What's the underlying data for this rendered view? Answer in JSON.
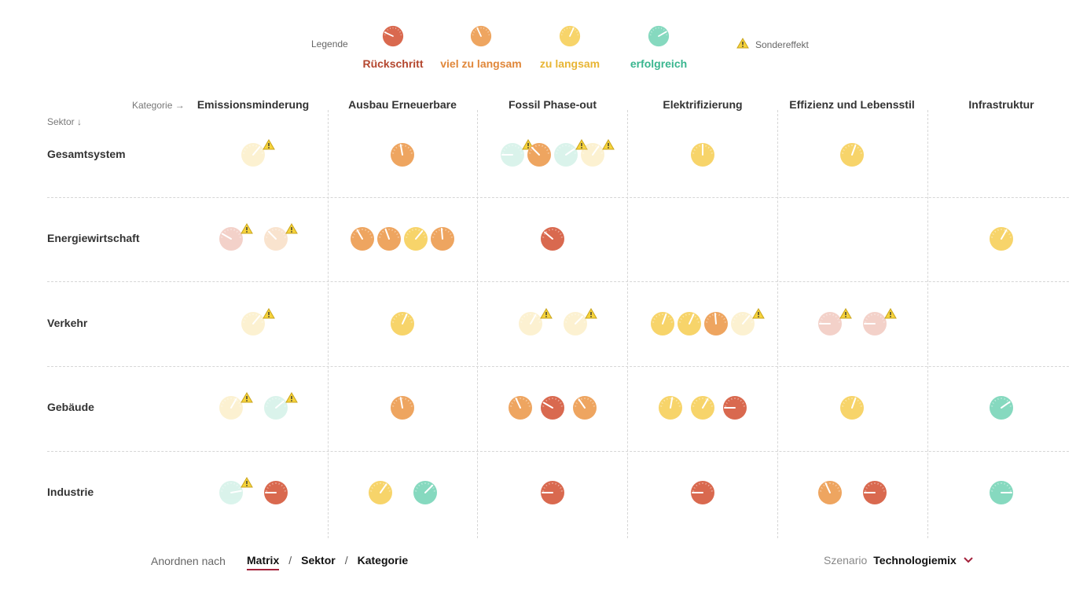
{
  "legend": {
    "title": "Legende",
    "items": [
      {
        "key": "rueck",
        "label": "Rückschritt",
        "color": "#d9694f",
        "text_color": "#b4472f",
        "angle": -65
      },
      {
        "key": "viel",
        "label": "viel zu langsam",
        "color": "#eea560",
        "text_color": "#e0873a",
        "angle": -25
      },
      {
        "key": "zu",
        "label": "zu langsam",
        "color": "#f7d46a",
        "text_color": "#e8b534",
        "angle": 25
      },
      {
        "key": "erf",
        "label": "erfolgreich",
        "color": "#86d9bf",
        "text_color": "#39b68f",
        "angle": 60
      }
    ],
    "special_label": "Sondereffekt"
  },
  "grid": {
    "category_hint": "Kategorie →",
    "sector_hint": "Sektor ↓",
    "categories": [
      "Emissionsminderung",
      "Ausbau Erneuerbare",
      "Fossil Phase-out",
      "Elektrifizierung",
      "Effizienz und Lebensstil",
      "Infrastruktur"
    ],
    "sectors": [
      "Gesamtsystem",
      "Energiewirtschaft",
      "Verkehr",
      "Gebäude",
      "Industrie"
    ],
    "cells": [
      [
        [
          {
            "s": "zu",
            "a": 40,
            "f": true,
            "w": true
          }
        ],
        [
          {
            "s": "viel",
            "a": -10
          }
        ],
        [
          {
            "s": "erf",
            "a": -90,
            "f": true,
            "w": true
          },
          {
            "s": "viel",
            "a": -45
          },
          {
            "s": "erf",
            "a": 55,
            "f": true,
            "w": true
          },
          {
            "s": "zu",
            "a": 35,
            "f": true,
            "w": true
          }
        ],
        [
          {
            "s": "zu",
            "a": 0
          }
        ],
        [
          {
            "s": "zu",
            "a": 20
          }
        ],
        []
      ],
      [
        [
          {
            "s": "rueck",
            "a": -60,
            "f": true,
            "w": true
          },
          {
            "s": "viel",
            "a": -45,
            "f": true,
            "w": true
          }
        ],
        [
          {
            "s": "viel",
            "a": -30
          },
          {
            "s": "viel",
            "a": -20
          },
          {
            "s": "zu",
            "a": 40
          },
          {
            "s": "viel",
            "a": -5
          }
        ],
        [
          {
            "s": "rueck",
            "a": -50
          }
        ],
        [],
        [],
        [
          {
            "s": "zu",
            "a": 30
          }
        ]
      ],
      [
        [
          {
            "s": "zu",
            "a": 40,
            "f": true,
            "w": true
          }
        ],
        [
          {
            "s": "zu",
            "a": 25
          }
        ],
        [
          {
            "s": "zu",
            "a": 30,
            "f": true,
            "w": true
          },
          {
            "s": "zu",
            "a": 45,
            "f": true,
            "w": true
          }
        ],
        [
          {
            "s": "zu",
            "a": 20
          },
          {
            "s": "zu",
            "a": 25
          },
          {
            "s": "viel",
            "a": -5
          },
          {
            "s": "zu",
            "a": 40,
            "f": true,
            "w": true
          }
        ],
        [
          {
            "s": "rueck",
            "a": -90,
            "f": true,
            "w": true
          },
          {
            "s": "rueck",
            "a": -90,
            "f": true,
            "w": true
          }
        ],
        []
      ],
      [
        [
          {
            "s": "zu",
            "a": 30,
            "f": true,
            "w": true
          },
          {
            "s": "erf",
            "a": 50,
            "f": true,
            "w": true
          }
        ],
        [
          {
            "s": "viel",
            "a": -10
          }
        ],
        [
          {
            "s": "viel",
            "a": -25
          },
          {
            "s": "rueck",
            "a": -60
          },
          {
            "s": "viel",
            "a": -35
          }
        ],
        [
          {
            "s": "zu",
            "a": 10
          },
          {
            "s": "zu",
            "a": 30
          },
          {
            "s": "rueck",
            "a": -90
          }
        ],
        [
          {
            "s": "zu",
            "a": 20
          }
        ],
        [
          {
            "s": "erf",
            "a": 55
          }
        ]
      ],
      [
        [
          {
            "s": "erf",
            "a": 80,
            "f": true,
            "w": true
          },
          {
            "s": "rueck",
            "a": -90
          }
        ],
        [
          {
            "s": "zu",
            "a": 35
          },
          {
            "s": "erf",
            "a": 45
          }
        ],
        [
          {
            "s": "rueck",
            "a": -90
          }
        ],
        [
          {
            "s": "rueck",
            "a": -90
          }
        ],
        [
          {
            "s": "viel",
            "a": -25
          },
          {
            "s": "rueck",
            "a": -90
          }
        ],
        [
          {
            "s": "erf",
            "a": 90
          }
        ]
      ]
    ]
  },
  "arrange": {
    "label": "Anordnen nach",
    "options": [
      "Matrix",
      "Sektor",
      "Kategorie"
    ],
    "separator": "/",
    "active": "Matrix"
  },
  "scenario": {
    "label": "Szenario",
    "value": "Technologiemix"
  }
}
